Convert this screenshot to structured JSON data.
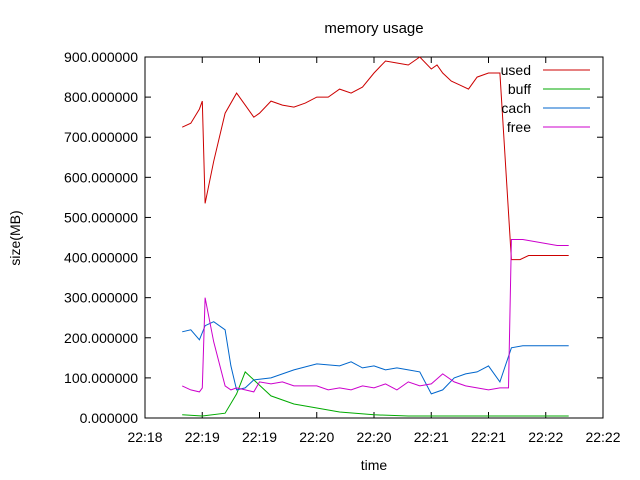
{
  "chart_data": {
    "type": "line",
    "title": "memory usage",
    "xlabel": "time",
    "ylabel": "size(MB)",
    "ylim": [
      0,
      900
    ],
    "y_ticks": [
      "0.000000",
      "100.000000",
      "200.000000",
      "300.000000",
      "400.000000",
      "500.000000",
      "600.000000",
      "700.000000",
      "800.000000",
      "900.000000"
    ],
    "x_ticks": [
      "22:18",
      "22:19",
      "22:19",
      "22:20",
      "22:20",
      "22:21",
      "22:21",
      "22:22",
      "22:22"
    ],
    "legend_position": "top-right",
    "grid": false,
    "series": [
      {
        "name": "used",
        "color": "#cc0000",
        "x": [
          0.65,
          0.8,
          0.95,
          1.0,
          1.05,
          1.2,
          1.4,
          1.6,
          1.75,
          1.9,
          2.0,
          2.2,
          2.4,
          2.6,
          2.8,
          3.0,
          3.2,
          3.4,
          3.6,
          3.8,
          4.0,
          4.2,
          4.4,
          4.6,
          4.8,
          5.0,
          5.1,
          5.2,
          5.35,
          5.5,
          5.65,
          5.8,
          6.0,
          6.2,
          6.4,
          6.55,
          6.7,
          6.8,
          6.9,
          7.0,
          7.2,
          7.4
        ],
        "values": [
          725,
          735,
          770,
          790,
          535,
          640,
          760,
          810,
          780,
          750,
          760,
          790,
          780,
          775,
          785,
          800,
          800,
          820,
          810,
          825,
          860,
          890,
          885,
          880,
          900,
          870,
          880,
          860,
          840,
          830,
          820,
          850,
          860,
          860,
          395,
          395,
          405,
          405,
          405,
          405,
          405,
          405
        ]
      },
      {
        "name": "buff",
        "color": "#00aa00",
        "x": [
          0.65,
          1.0,
          1.4,
          1.6,
          1.75,
          1.9,
          2.2,
          2.6,
          3.0,
          3.4,
          4.0,
          4.6,
          5.0,
          5.6,
          6.0,
          6.4,
          7.4
        ],
        "values": [
          8,
          5,
          12,
          60,
          115,
          95,
          55,
          35,
          25,
          15,
          8,
          5,
          5,
          5,
          5,
          5,
          5
        ]
      },
      {
        "name": "cach",
        "color": "#0066cc",
        "x": [
          0.65,
          0.8,
          0.95,
          1.05,
          1.2,
          1.4,
          1.5,
          1.6,
          1.75,
          1.9,
          2.2,
          2.6,
          3.0,
          3.4,
          3.6,
          3.8,
          4.0,
          4.2,
          4.4,
          4.6,
          4.8,
          5.0,
          5.2,
          5.4,
          5.6,
          5.8,
          6.0,
          6.2,
          6.4,
          6.6,
          7.4
        ],
        "values": [
          215,
          220,
          195,
          230,
          240,
          220,
          130,
          70,
          75,
          95,
          100,
          120,
          135,
          130,
          140,
          125,
          130,
          120,
          125,
          120,
          115,
          60,
          70,
          100,
          110,
          115,
          130,
          90,
          175,
          180,
          180
        ]
      },
      {
        "name": "free",
        "color": "#cc00cc",
        "x": [
          0.65,
          0.8,
          0.95,
          1.0,
          1.05,
          1.2,
          1.4,
          1.5,
          1.6,
          1.75,
          1.9,
          2.0,
          2.2,
          2.4,
          2.6,
          2.8,
          3.0,
          3.2,
          3.4,
          3.6,
          3.8,
          4.0,
          4.2,
          4.4,
          4.6,
          4.8,
          5.0,
          5.2,
          5.4,
          5.6,
          5.8,
          6.0,
          6.2,
          6.35,
          6.4,
          6.6,
          7.2,
          7.4
        ],
        "values": [
          80,
          70,
          65,
          75,
          300,
          190,
          80,
          70,
          75,
          70,
          65,
          90,
          85,
          90,
          80,
          80,
          80,
          70,
          75,
          70,
          80,
          75,
          85,
          70,
          90,
          80,
          85,
          110,
          90,
          80,
          75,
          70,
          75,
          75,
          445,
          445,
          430,
          430
        ]
      }
    ]
  }
}
